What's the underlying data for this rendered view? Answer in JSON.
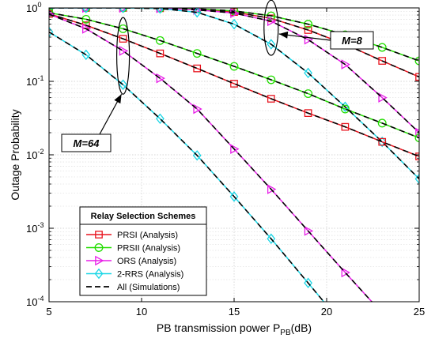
{
  "chart_data": {
    "type": "line",
    "xlabel_main": "PB transmission power P",
    "xlabel_sub": "PB",
    "xlabel_unit": "(dB)",
    "ylabel": "Outage Probability",
    "xlim": [
      5,
      25
    ],
    "ylim_log10": [
      -4,
      0
    ],
    "yscale": "log",
    "grid": true,
    "x_ticks": [
      5,
      10,
      15,
      20,
      25
    ],
    "y_ticks": [
      {
        "exp": -4,
        "base": "10",
        "sup": "-4"
      },
      {
        "exp": -3,
        "base": "10",
        "sup": "-3"
      },
      {
        "exp": -2,
        "base": "10",
        "sup": "-2"
      },
      {
        "exp": -1,
        "base": "10",
        "sup": "-1"
      },
      {
        "exp": 0,
        "base": "10",
        "sup": "0"
      }
    ],
    "legend": {
      "title": "Relay Selection Schemes",
      "placement": "bottom-left",
      "entries": [
        {
          "label": "PRSI (Analysis)",
          "color": "#e8141e",
          "marker": "square"
        },
        {
          "label": "PRSII (Analysis)",
          "color": "#22dd00",
          "marker": "circle"
        },
        {
          "label": "ORS (Analysis)",
          "color": "#e81ee8",
          "marker": "triangle-right"
        },
        {
          "label": "2-RRS (Analysis)",
          "color": "#19d6e6",
          "marker": "diamond"
        },
        {
          "label": "All (Simulations)",
          "color": "#000000",
          "marker": "dashed"
        }
      ]
    },
    "series": [
      {
        "scheme": "PRSI",
        "group": "M=8",
        "color": "#e8141e",
        "marker": "square",
        "x": [
          5,
          7,
          9,
          11,
          13,
          15,
          17,
          19,
          21,
          23,
          25
        ],
        "y": [
          1.0,
          1.0,
          1.0,
          0.99,
          0.96,
          0.88,
          0.72,
          0.5,
          0.32,
          0.19,
          0.115
        ]
      },
      {
        "scheme": "PRSII",
        "group": "M=8",
        "color": "#22dd00",
        "marker": "circle",
        "x": [
          5,
          7,
          9,
          11,
          13,
          15,
          17,
          19,
          21,
          23,
          25
        ],
        "y": [
          1.0,
          1.0,
          1.0,
          0.99,
          0.97,
          0.91,
          0.78,
          0.6,
          0.43,
          0.29,
          0.19
        ]
      },
      {
        "scheme": "ORS",
        "group": "M=8",
        "color": "#e81ee8",
        "marker": "triangle-right",
        "x": [
          5,
          7,
          9,
          11,
          13,
          15,
          17,
          19,
          21,
          23,
          25
        ],
        "y": [
          1.0,
          1.0,
          1.0,
          0.99,
          0.94,
          0.85,
          0.66,
          0.37,
          0.17,
          0.06,
          0.02
        ]
      },
      {
        "scheme": "2-RRS",
        "group": "M=8",
        "color": "#19d6e6",
        "marker": "diamond",
        "x": [
          5,
          7,
          9,
          11,
          13,
          15,
          17,
          19,
          21,
          23,
          25
        ],
        "y": [
          1.0,
          1.0,
          1.0,
          0.98,
          0.87,
          0.6,
          0.32,
          0.13,
          0.045,
          0.015,
          0.0047
        ]
      },
      {
        "scheme": "PRSI",
        "group": "M=64",
        "color": "#e8141e",
        "marker": "square",
        "x": [
          5,
          7,
          9,
          11,
          13,
          15,
          17,
          19,
          21,
          23,
          25
        ],
        "y": [
          0.83,
          0.58,
          0.38,
          0.24,
          0.15,
          0.093,
          0.058,
          0.037,
          0.024,
          0.015,
          0.0095
        ]
      },
      {
        "scheme": "PRSII",
        "group": "M=64",
        "color": "#22dd00",
        "marker": "circle",
        "x": [
          5,
          7,
          9,
          11,
          13,
          15,
          17,
          19,
          21,
          23,
          25
        ],
        "y": [
          0.86,
          0.7,
          0.52,
          0.36,
          0.24,
          0.16,
          0.105,
          0.068,
          0.042,
          0.027,
          0.017
        ]
      },
      {
        "scheme": "ORS",
        "group": "M=64",
        "color": "#e81ee8",
        "marker": "triangle-right",
        "x": [
          5,
          7,
          9,
          11,
          13,
          15,
          17,
          19,
          21,
          23
        ],
        "y": [
          0.82,
          0.52,
          0.26,
          0.11,
          0.042,
          0.012,
          0.0034,
          0.00092,
          0.00025,
          7e-05
        ]
      },
      {
        "scheme": "2-RRS",
        "group": "M=64",
        "color": "#19d6e6",
        "marker": "diamond",
        "x": [
          5,
          7,
          9,
          11,
          13,
          15,
          17,
          19,
          21
        ],
        "y": [
          0.47,
          0.23,
          0.09,
          0.031,
          0.0098,
          0.0027,
          0.00072,
          0.00018,
          4.5e-05
        ]
      }
    ],
    "annotations": [
      {
        "text": "M=8",
        "target_x": 17,
        "target_y": 0.78
      },
      {
        "text": "M=64",
        "target_x": 9,
        "target_y": 0.09
      }
    ]
  }
}
